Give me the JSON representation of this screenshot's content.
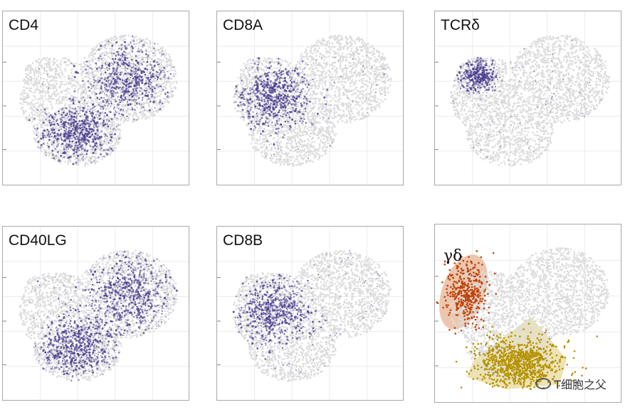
{
  "colors": {
    "background_cells": "#dcdcdc",
    "expression": "#4a3d8f",
    "gamma_delta_cluster": "#c0420a",
    "gamma_delta_region": "#e8b89a",
    "yellow_cluster": "#b59300",
    "yellow_region": "#e9dca4",
    "frame": "#a8a8a8",
    "grid": "#ececec"
  },
  "chart_data": [
    {
      "type": "scatter",
      "title": "CD4",
      "expressed_regions": [
        "upper-right lobe",
        "lower-left lobe"
      ],
      "grid": true
    },
    {
      "type": "scatter",
      "title": "CD8A",
      "expressed_regions": [
        "central-left lobe"
      ],
      "grid": true
    },
    {
      "type": "scatter",
      "title": "TCRδ",
      "expressed_regions": [
        "upper-left island"
      ],
      "grid": true
    },
    {
      "type": "scatter",
      "title": "CD40LG",
      "expressed_regions": [
        "upper-right lobe",
        "lower-left lobe"
      ],
      "grid": true
    },
    {
      "type": "scatter",
      "title": "CD8B",
      "expressed_regions": [
        "central-left lobe"
      ],
      "grid": true
    },
    {
      "type": "scatter",
      "title": "",
      "annotations": [
        "γδ"
      ],
      "clusters": [
        "γδ",
        "bottom-center"
      ],
      "grid": true
    }
  ],
  "watermark": {
    "icon": "wechat-icon",
    "text": "T细胞之父"
  }
}
